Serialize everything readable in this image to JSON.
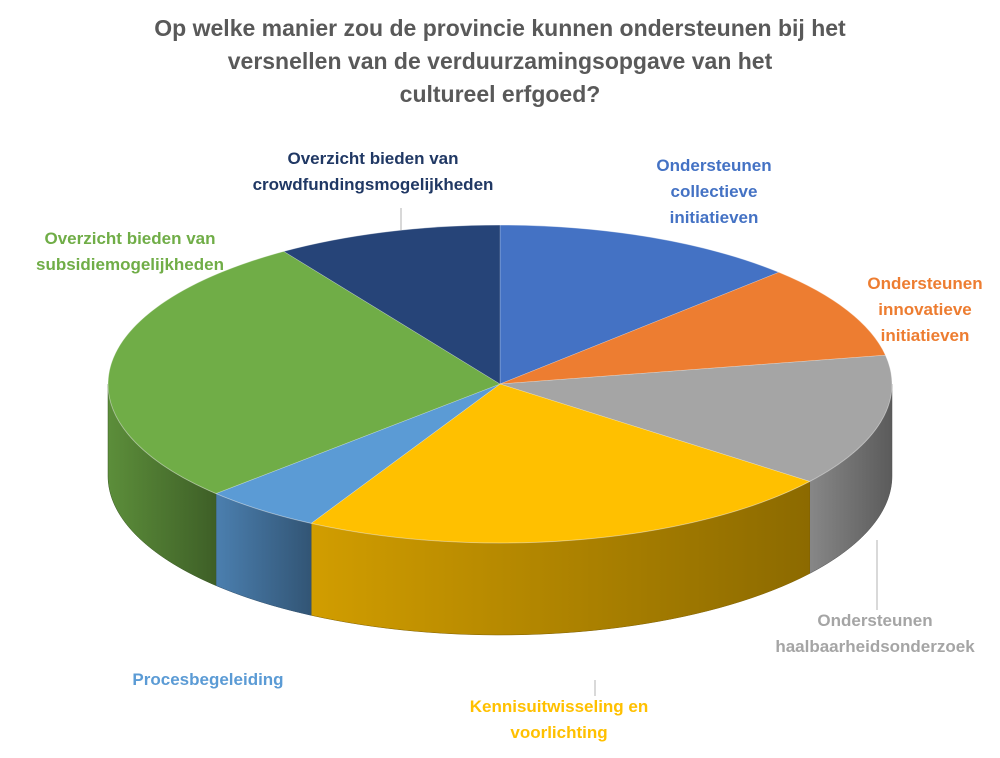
{
  "chart_data": {
    "type": "pie",
    "title_lines": [
      "Op welke manier zou de provincie kunnen ondersteunen bij het",
      "versnellen van de verduurzamingsopgave van het",
      "cultureel erfgoed?"
    ],
    "slices": [
      {
        "label_lines": [
          "Ondersteunen",
          "collectieve",
          "initiatieven"
        ],
        "value": 12.6,
        "color": "#4472C4"
      },
      {
        "label_lines": [
          "Ondersteunen",
          "innovatieve",
          "initiatieven"
        ],
        "value": 9.5,
        "color": "#ED7D31"
      },
      {
        "label_lines": [
          "Ondersteunen",
          "haalbaarheidsonderzoek"
        ],
        "value": 13.4,
        "color": "#A5A5A5"
      },
      {
        "label_lines": [
          "Kennisuitwisseling en",
          "voorlichting"
        ],
        "value": 22.5,
        "color": "#FFC000"
      },
      {
        "label_lines": [
          "Procesbegeleiding"
        ],
        "value": 4.9,
        "color": "#5B9BD5"
      },
      {
        "label_lines": [
          "Overzicht bieden van",
          "subsidiemogelijkheden"
        ],
        "value": 27.8,
        "color": "#70AD47"
      },
      {
        "label_lines": [
          "Overzicht bieden van",
          "crowdfundingsmogelijkheden"
        ],
        "value": 9.3,
        "color": "#264478"
      }
    ],
    "label_colors": [
      "#4472C4",
      "#ED7D31",
      "#A5A5A5",
      "#FFC000",
      "#5B9BD5",
      "#70AD47",
      "#203864"
    ],
    "legend": "none",
    "start_angle_deg": 0,
    "direction": "clockwise",
    "style": "3d"
  }
}
